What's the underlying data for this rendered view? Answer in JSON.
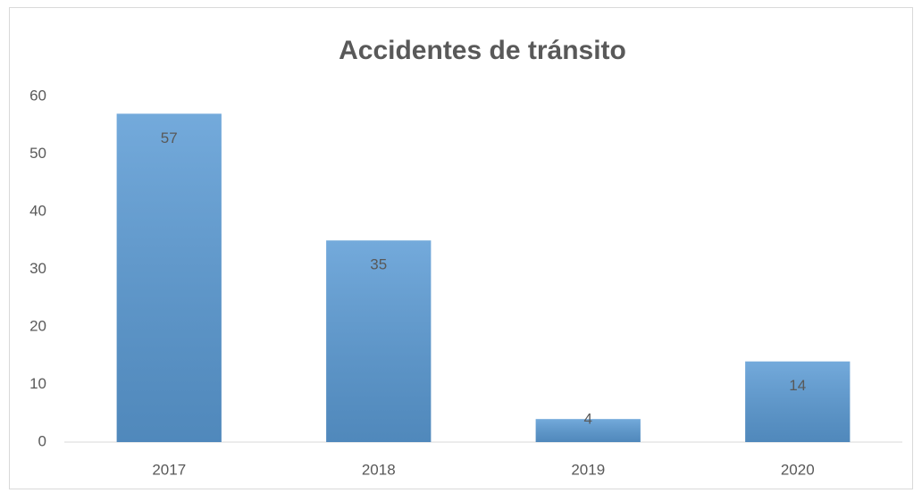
{
  "chart_data": {
    "type": "bar",
    "title": "Accidentes de tránsito",
    "categories": [
      "2017",
      "2018",
      "2019",
      "2020"
    ],
    "values": [
      57,
      35,
      4,
      14
    ],
    "color": "#5b9bd5",
    "ylim": [
      0,
      60
    ],
    "yticks": [
      0,
      10,
      20,
      30,
      40,
      50,
      60
    ],
    "grid": false,
    "data_labels": true
  }
}
